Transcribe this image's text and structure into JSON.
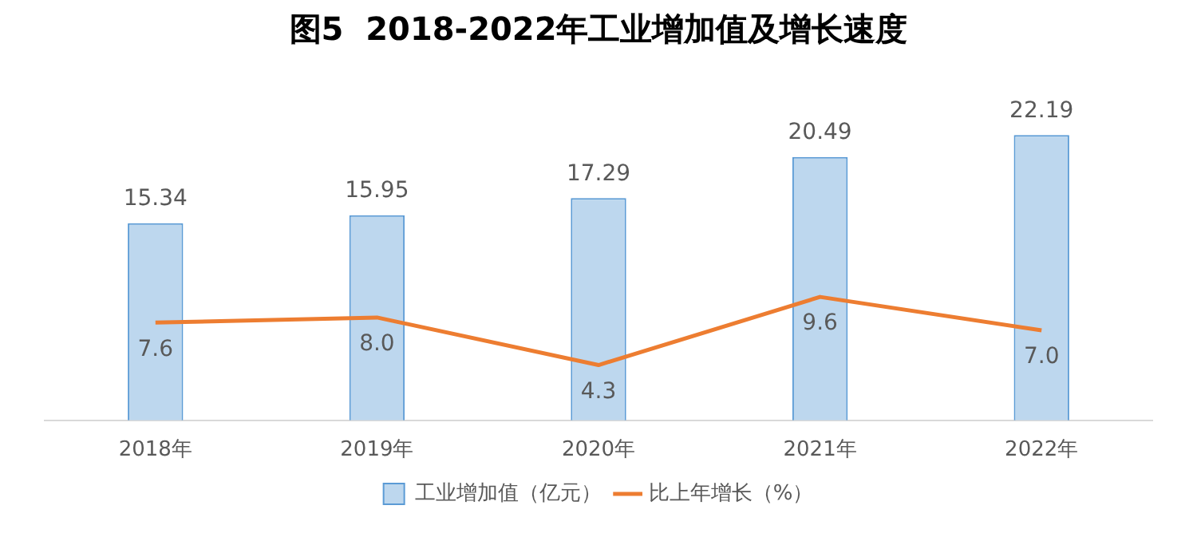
{
  "chart_data": {
    "type": "bar",
    "title": "图5  2018-2022年工业增加值及增长速度",
    "categories": [
      "2018年",
      "2019年",
      "2020年",
      "2021年",
      "2022年"
    ],
    "series": [
      {
        "name": "工业增加值（亿元）",
        "type": "bar",
        "color": "#bdd7ee",
        "values": [
          15.34,
          15.95,
          17.29,
          20.49,
          22.19
        ]
      },
      {
        "name": "比上年增长（%）",
        "type": "line",
        "color": "#ed7d31",
        "values": [
          7.6,
          8.0,
          4.3,
          9.6,
          7.0
        ],
        "value_labels": [
          "7.6",
          "8.0",
          "4.3",
          "9.6",
          "7.0"
        ]
      }
    ],
    "value_labels": [
      "15.34",
      "15.95",
      "17.29",
      "20.49",
      "22.19"
    ],
    "tick_labels": "x",
    "grid": false,
    "legend": "bottom",
    "marker": "none",
    "line_style": "solid"
  }
}
